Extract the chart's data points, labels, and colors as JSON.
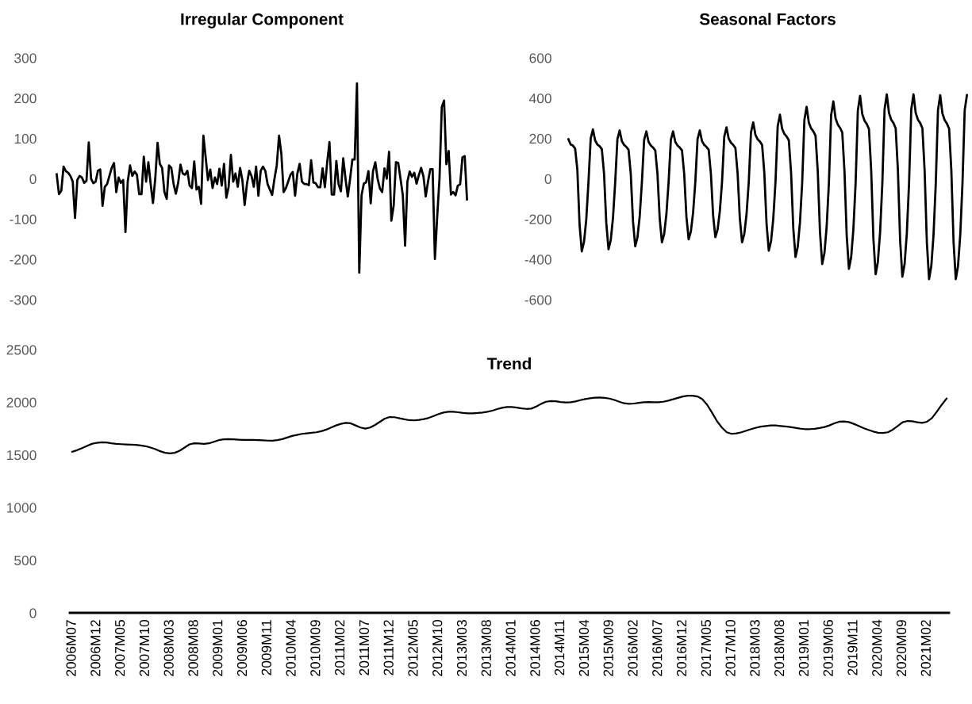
{
  "chart_data": [
    {
      "type": "line",
      "title": "Irregular Component",
      "tick_labels": "y",
      "ylim": [
        -300,
        300
      ],
      "yticks": [
        -300,
        -200,
        -100,
        0,
        100,
        200,
        300
      ],
      "categories": [
        null,
        null,
        null,
        null,
        null,
        null,
        null,
        null,
        null,
        null,
        null,
        null,
        null,
        null,
        null,
        null,
        null,
        null,
        null,
        null,
        null,
        null,
        null,
        null,
        null,
        null,
        null,
        null,
        null,
        null,
        null,
        null,
        null,
        null,
        null,
        null,
        null,
        null,
        null,
        null,
        null,
        null,
        null,
        null,
        null,
        null,
        null,
        null,
        null,
        null,
        null,
        null,
        null,
        null,
        null,
        null,
        null,
        null,
        null,
        null,
        null,
        null,
        null,
        null,
        null,
        null,
        null,
        null,
        null,
        null,
        null,
        null,
        null,
        null,
        null,
        null,
        null,
        null,
        null,
        null,
        null,
        null,
        null,
        null,
        null,
        null,
        null,
        null,
        null,
        null,
        null,
        null,
        null,
        null,
        null,
        null,
        null,
        null,
        null,
        null,
        null,
        null,
        null,
        null,
        null,
        null,
        null,
        null,
        null,
        null,
        null,
        null,
        null,
        null,
        null,
        null,
        null,
        null,
        null,
        null,
        null,
        null,
        null,
        null,
        null,
        null,
        null,
        null,
        null,
        null,
        null,
        null,
        null,
        null,
        null,
        null,
        null,
        null,
        null,
        null,
        null,
        null,
        null,
        null,
        null,
        null,
        null,
        null,
        null,
        null,
        null,
        null,
        null,
        null,
        null,
        null,
        null,
        null,
        null,
        null,
        null,
        null,
        null,
        null,
        null,
        null,
        null,
        null,
        null,
        null,
        null,
        null,
        null,
        null,
        null,
        null,
        null,
        null,
        null,
        null
      ],
      "series": [
        {
          "color": "#000000",
          "values": [
            11,
            -38,
            -30,
            30,
            19,
            15,
            7,
            -7,
            -97,
            -3,
            7,
            3,
            -10,
            -5,
            90,
            0,
            -11,
            -7,
            20,
            23,
            -67,
            -20,
            -13,
            7,
            27,
            39,
            -33,
            3,
            -10,
            -3,
            -132,
            -7,
            33,
            7,
            18,
            10,
            -38,
            -38,
            55,
            -7,
            41,
            -13,
            -60,
            0,
            89,
            37,
            27,
            -33,
            -50,
            33,
            27,
            -13,
            -37,
            -10,
            35,
            13,
            10,
            20,
            -17,
            -23,
            43,
            -27,
            -20,
            -62,
            107,
            53,
            -3,
            23,
            -23,
            3,
            -13,
            25,
            -17,
            37,
            -47,
            -20,
            59,
            -7,
            13,
            -20,
            27,
            -3,
            -65,
            -13,
            20,
            7,
            -20,
            30,
            -42,
            20,
            30,
            20,
            -13,
            -27,
            -40,
            0,
            33,
            107,
            63,
            -33,
            -23,
            -7,
            10,
            17,
            -42,
            13,
            37,
            -7,
            -13,
            -13,
            -16,
            46,
            -9,
            -11,
            -21,
            -21,
            26,
            -21,
            40,
            91,
            -39,
            -39,
            44,
            -14,
            -31,
            51,
            0,
            -44,
            0,
            48,
            48,
            237,
            -233,
            -41,
            -12,
            -9,
            19,
            -61,
            19,
            41,
            0,
            -24,
            -33,
            26,
            0,
            67,
            -104,
            -67,
            41,
            39,
            0,
            -41,
            -166,
            -7,
            18,
            5,
            15,
            -12,
            9,
            27,
            6,
            -44,
            -7,
            24,
            24,
            -199,
            -94,
            0,
            178,
            194,
            36,
            69,
            -39,
            -33,
            -41,
            -17,
            -14,
            53,
            56,
            -51
          ]
        }
      ]
    },
    {
      "type": "line",
      "title": "Seasonal Factors",
      "tick_labels": "y",
      "ylim": [
        -600,
        600
      ],
      "yticks": [
        -600,
        -400,
        -200,
        0,
        200,
        400,
        600
      ],
      "categories": [
        null,
        null,
        null,
        null,
        null,
        null,
        null,
        null,
        null,
        null,
        null,
        null,
        null,
        null,
        null,
        null,
        null,
        null,
        null,
        null,
        null,
        null,
        null,
        null,
        null,
        null,
        null,
        null,
        null,
        null,
        null,
        null,
        null,
        null,
        null,
        null,
        null,
        null,
        null,
        null,
        null,
        null,
        null,
        null,
        null,
        null,
        null,
        null,
        null,
        null,
        null,
        null,
        null,
        null,
        null,
        null,
        null,
        null,
        null,
        null,
        null,
        null,
        null,
        null,
        null,
        null,
        null,
        null,
        null,
        null,
        null,
        null,
        null,
        null,
        null,
        null,
        null,
        null,
        null,
        null,
        null,
        null,
        null,
        null,
        null,
        null,
        null,
        null,
        null,
        null,
        null,
        null,
        null,
        null,
        null,
        null,
        null,
        null,
        null,
        null,
        null,
        null,
        null,
        null,
        null,
        null,
        null,
        null,
        null,
        null,
        null,
        null,
        null,
        null,
        null,
        null,
        null,
        null,
        null,
        null,
        null,
        null,
        null,
        null,
        null,
        null,
        null,
        null,
        null,
        null,
        null,
        null,
        null,
        null,
        null,
        null,
        null,
        null,
        null,
        null,
        null,
        null,
        null,
        null,
        null,
        null,
        null,
        null,
        null,
        null,
        null,
        null,
        null,
        null,
        null,
        null,
        null,
        null,
        null,
        null,
        null,
        null,
        null,
        null,
        null,
        null,
        null,
        null,
        null,
        null,
        null,
        null,
        null,
        null,
        null,
        null,
        null,
        null,
        null,
        null
      ],
      "series": [
        {
          "color": "#000000",
          "values": [
            196,
            170,
            165,
            150,
            46,
            -229,
            -360,
            -313,
            -203,
            -16,
            200,
            245,
            190,
            170,
            162,
            147,
            25,
            -220,
            -350,
            -305,
            -195,
            -18,
            197,
            240,
            187,
            168,
            158,
            144,
            24,
            -211,
            -335,
            -291,
            -188,
            -17,
            193,
            235,
            183,
            165,
            155,
            141,
            24,
            -198,
            -315,
            -274,
            -176,
            -16,
            193,
            235,
            183,
            165,
            155,
            141,
            24,
            -189,
            -300,
            -261,
            -168,
            -15,
            197,
            240,
            187,
            168,
            158,
            144,
            24,
            -183,
            -290,
            -252,
            -162,
            -15,
            209,
            255,
            199,
            179,
            168,
            153,
            26,
            -198,
            -315,
            -274,
            -176,
            -16,
            230,
            280,
            218,
            196,
            185,
            168,
            28,
            -225,
            -357,
            -311,
            -200,
            -18,
            261,
            318,
            248,
            223,
            210,
            191,
            32,
            -244,
            -388,
            -338,
            -217,
            -19,
            293,
            357,
            278,
            250,
            236,
            214,
            36,
            -266,
            -423,
            -368,
            -237,
            -21,
            315,
            384,
            300,
            269,
            253,
            230,
            38,
            -282,
            -447,
            -389,
            -250,
            -22,
            338,
            412,
            321,
            288,
            272,
            247,
            41,
            -299,
            -474,
            -412,
            -265,
            -24,
            344,
            419,
            327,
            293,
            277,
            251,
            42,
            -306,
            -486,
            -423,
            -272,
            -24,
            344,
            419,
            327,
            293,
            277,
            251,
            42,
            -314,
            -498,
            -433,
            -279,
            -25,
            340,
            415,
            324,
            291,
            274,
            249,
            42,
            -314,
            -498,
            -433,
            -279,
            -25,
            340,
            415
          ]
        }
      ]
    },
    {
      "type": "line",
      "title": "Trend",
      "ylim": [
        0,
        2500
      ],
      "yticks": [
        0,
        500,
        1000,
        1500,
        2000,
        2500
      ],
      "categories": [
        "2006M07",
        null,
        null,
        null,
        null,
        "2006M12",
        null,
        null,
        null,
        null,
        "2007M05",
        null,
        null,
        null,
        null,
        "2007M10",
        null,
        null,
        null,
        null,
        "2008M03",
        null,
        null,
        null,
        null,
        "2008M08",
        null,
        null,
        null,
        null,
        "2009M01",
        null,
        null,
        null,
        null,
        "2009M06",
        null,
        null,
        null,
        null,
        "2009M11",
        null,
        null,
        null,
        null,
        "2010M04",
        null,
        null,
        null,
        null,
        "2010M09",
        null,
        null,
        null,
        null,
        "2011M02",
        null,
        null,
        null,
        null,
        "2011M07",
        null,
        null,
        null,
        null,
        "2011M12",
        null,
        null,
        null,
        null,
        "2012M05",
        null,
        null,
        null,
        null,
        "2012M10",
        null,
        null,
        null,
        null,
        "2013M03",
        null,
        null,
        null,
        null,
        "2013M08",
        null,
        null,
        null,
        null,
        "2014M01",
        null,
        null,
        null,
        null,
        "2014M06",
        null,
        null,
        null,
        null,
        "2014M11",
        null,
        null,
        null,
        null,
        "2015M04",
        null,
        null,
        null,
        null,
        "2015M09",
        null,
        null,
        null,
        null,
        "2016M02",
        null,
        null,
        null,
        null,
        "2016M07",
        null,
        null,
        null,
        null,
        "2016M12",
        null,
        null,
        null,
        null,
        "2017M05",
        null,
        null,
        null,
        null,
        "2017M10",
        null,
        null,
        null,
        null,
        "2018M03",
        null,
        null,
        null,
        null,
        "2018M08",
        null,
        null,
        null,
        null,
        "2019M01",
        null,
        null,
        null,
        null,
        "2019M06",
        null,
        null,
        null,
        null,
        "2019M11",
        null,
        null,
        null,
        null,
        "2020M04",
        null,
        null,
        null,
        null,
        "2020M09",
        null,
        null,
        null,
        null,
        "2021M02",
        null,
        null,
        null,
        null
      ],
      "series": [
        {
          "color": "#000000",
          "values": [
            1530,
            1545,
            1565,
            1585,
            1605,
            1615,
            1620,
            1618,
            1610,
            1605,
            1602,
            1600,
            1598,
            1595,
            1590,
            1583,
            1570,
            1555,
            1535,
            1520,
            1515,
            1520,
            1540,
            1570,
            1600,
            1610,
            1608,
            1605,
            1610,
            1625,
            1640,
            1648,
            1650,
            1648,
            1645,
            1643,
            1642,
            1642,
            1640,
            1638,
            1636,
            1635,
            1640,
            1650,
            1665,
            1680,
            1690,
            1700,
            1705,
            1710,
            1715,
            1725,
            1740,
            1760,
            1780,
            1795,
            1805,
            1800,
            1780,
            1760,
            1750,
            1760,
            1785,
            1815,
            1845,
            1860,
            1858,
            1848,
            1838,
            1830,
            1828,
            1832,
            1840,
            1852,
            1870,
            1888,
            1902,
            1910,
            1910,
            1905,
            1898,
            1895,
            1895,
            1898,
            1903,
            1910,
            1920,
            1935,
            1948,
            1955,
            1955,
            1950,
            1942,
            1937,
            1940,
            1960,
            1985,
            2005,
            2012,
            2010,
            2002,
            1998,
            2000,
            2008,
            2020,
            2030,
            2038,
            2043,
            2045,
            2042,
            2035,
            2022,
            2005,
            1990,
            1985,
            1988,
            1995,
            2000,
            2002,
            2000,
            2000,
            2005,
            2015,
            2028,
            2042,
            2055,
            2062,
            2063,
            2055,
            2030,
            1975,
            1900,
            1820,
            1760,
            1715,
            1700,
            1705,
            1715,
            1730,
            1745,
            1758,
            1768,
            1775,
            1780,
            1780,
            1775,
            1770,
            1765,
            1758,
            1750,
            1745,
            1745,
            1748,
            1755,
            1765,
            1780,
            1800,
            1815,
            1818,
            1812,
            1795,
            1775,
            1755,
            1738,
            1722,
            1710,
            1708,
            1715,
            1740,
            1775,
            1810,
            1822,
            1820,
            1810,
            1805,
            1815,
            1850,
            1910,
            1975,
            2035
          ]
        }
      ]
    }
  ]
}
